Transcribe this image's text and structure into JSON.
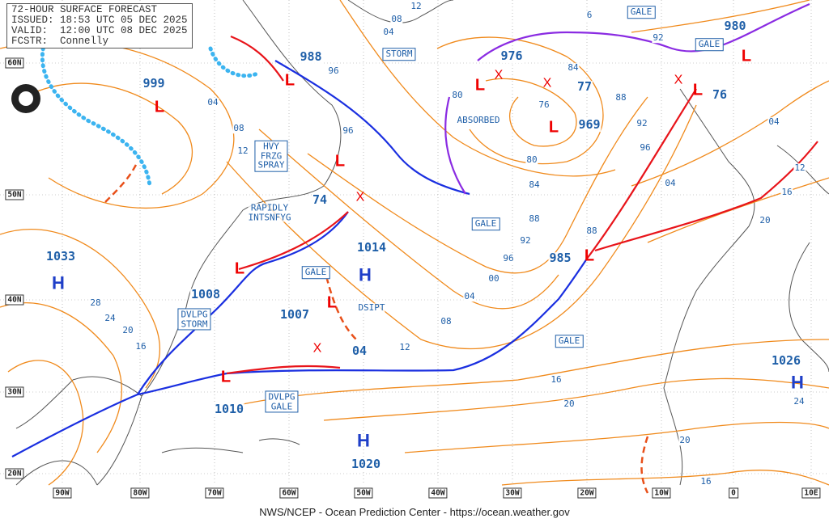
{
  "header": {
    "title": "72-HOUR SURFACE FORECAST",
    "issued": "ISSUED: 18:53 UTC 05 DEC 2025",
    "valid": "VALID:  12:00 UTC 08 DEC 2025",
    "forecaster": "FCSTR:  Connelly"
  },
  "footer": "NWS/NCEP - Ocean Prediction Center - https://ocean.weather.gov",
  "logo": "NOAA",
  "latitudes": [
    "60N",
    "50N",
    "40N",
    "30N",
    "20N"
  ],
  "longitudes": [
    "90W",
    "80W",
    "70W",
    "60W",
    "50W",
    "40W",
    "30W",
    "20W",
    "10W",
    "0",
    "10E"
  ],
  "pressures": [
    "999",
    "988",
    "976",
    "980",
    "77",
    "969",
    "76",
    "74",
    "1033",
    "1014",
    "985",
    "1008",
    "1007",
    "04",
    "1010",
    "1020",
    "1026"
  ],
  "highs": [
    "H",
    "H",
    "H",
    "H"
  ],
  "lows": [
    "L",
    "L",
    "L",
    "L",
    "L",
    "L",
    "L",
    "L",
    "L",
    "L",
    "L"
  ],
  "new_centers": [
    "X",
    "X",
    "X",
    "X",
    "X"
  ],
  "boxed_labels": [
    "STORM",
    "GALE",
    "GALE",
    "GALE",
    "GALE",
    "GALE",
    "DVLPG\nSTORM",
    "DVLPG\nGALE",
    "HVY\nFRZG\nSPRAY"
  ],
  "text_labels": [
    "RAPIDLY\nINTSNFYG",
    "ABSORBED",
    "DSIPT"
  ],
  "isobar_labels": [
    "08",
    "12",
    "04",
    "6",
    "92",
    "96",
    "04",
    "08",
    "12",
    "96",
    "80",
    "84",
    "76",
    "88",
    "92",
    "96",
    "80",
    "84",
    "88",
    "92",
    "96",
    "00",
    "04",
    "08",
    "12",
    "04",
    "88",
    "04",
    "12",
    "16",
    "20",
    "28",
    "24",
    "20",
    "16",
    "16",
    "20",
    "20",
    "16",
    "24"
  ],
  "colors": {
    "isobar": "#f08a1c",
    "cold_front": "#1a2fe0",
    "warm_front": "#e8141a",
    "occluded": "#8a2be2",
    "label": "#1f5fa8",
    "ice_edge": "#3cb4f0",
    "grid": "#9a9a9a"
  }
}
